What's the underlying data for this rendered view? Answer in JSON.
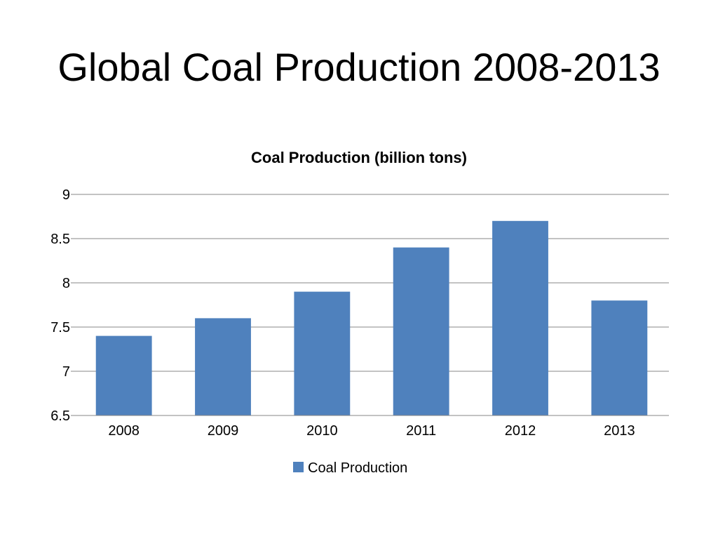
{
  "slide": {
    "title": "Global Coal Production 2008-2013"
  },
  "colors": {
    "bar": "#4f81bd",
    "grid": "#878787",
    "axis": "#878787",
    "background": "#ffffff"
  },
  "chart_data": {
    "type": "bar",
    "title": "Coal Production  (billion tons)",
    "xlabel": "",
    "ylabel": "",
    "categories": [
      "2008",
      "2009",
      "2010",
      "2011",
      "2012",
      "2013"
    ],
    "series": [
      {
        "name": "Coal Production",
        "values": [
          7.4,
          7.6,
          7.9,
          8.4,
          8.7,
          7.8
        ]
      }
    ],
    "ylim": [
      6.5,
      9
    ],
    "yticks": [
      6.5,
      7,
      7.5,
      8,
      8.5,
      9
    ],
    "ytick_labels": [
      "6.5",
      "7",
      "7.5",
      "8",
      "8.5",
      "9"
    ],
    "grid": true,
    "legend_position": "bottom"
  }
}
